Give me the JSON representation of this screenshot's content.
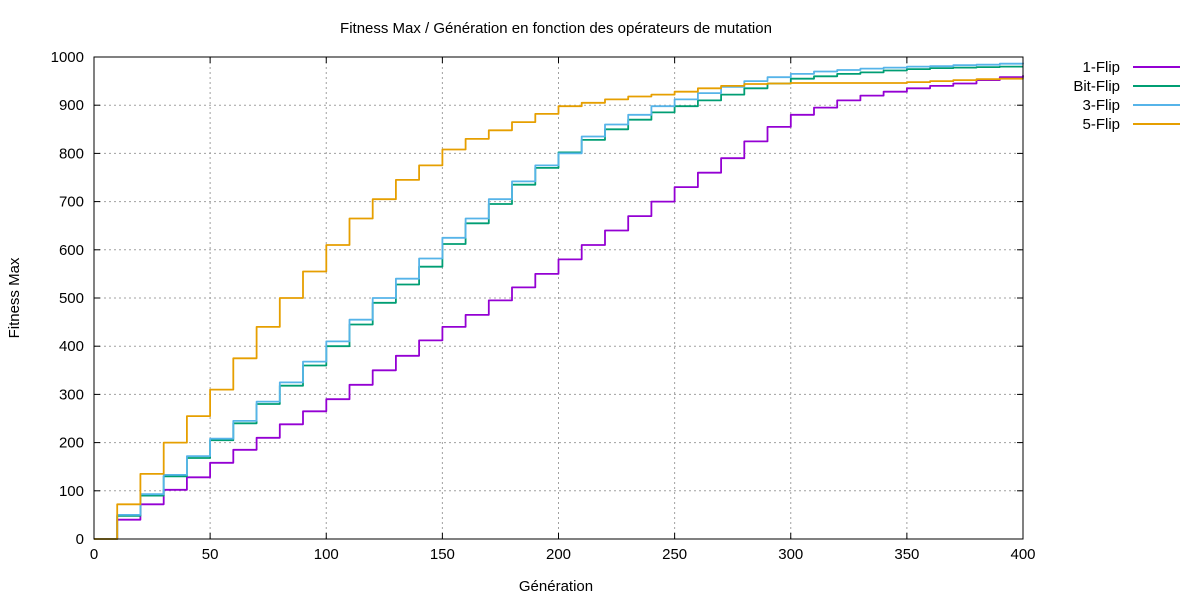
{
  "chart_data": {
    "type": "line",
    "title": "Fitness Max / Génération en fonction des opérateurs de mutation",
    "xlabel": "Génération",
    "ylabel": "Fitness Max",
    "xlim": [
      0,
      400
    ],
    "ylim": [
      0,
      1000
    ],
    "xticks": [
      0,
      50,
      100,
      150,
      200,
      250,
      300,
      350,
      400
    ],
    "yticks": [
      0,
      100,
      200,
      300,
      400,
      500,
      600,
      700,
      800,
      900,
      1000
    ],
    "grid": true,
    "legend_position": "outside-top-right",
    "series": [
      {
        "name": "1-Flip",
        "color": "#9400d3",
        "x": [
          0,
          10,
          20,
          30,
          40,
          50,
          60,
          70,
          80,
          90,
          100,
          110,
          120,
          130,
          140,
          150,
          160,
          170,
          180,
          190,
          200,
          210,
          220,
          230,
          240,
          250,
          260,
          270,
          280,
          290,
          300,
          310,
          320,
          330,
          340,
          350,
          360,
          370,
          380,
          390,
          400
        ],
        "y": [
          0,
          40,
          72,
          102,
          128,
          158,
          185,
          210,
          238,
          265,
          290,
          320,
          350,
          380,
          412,
          440,
          465,
          495,
          522,
          550,
          580,
          610,
          640,
          670,
          700,
          730,
          760,
          790,
          825,
          855,
          880,
          895,
          910,
          920,
          928,
          935,
          940,
          945,
          952,
          958,
          962
        ]
      },
      {
        "name": "Bit-Flip",
        "color": "#009e73",
        "x": [
          0,
          10,
          20,
          30,
          40,
          50,
          60,
          70,
          80,
          90,
          100,
          110,
          120,
          130,
          140,
          150,
          160,
          170,
          180,
          190,
          200,
          210,
          220,
          230,
          240,
          250,
          260,
          270,
          280,
          290,
          300,
          310,
          320,
          330,
          340,
          350,
          360,
          370,
          380,
          390,
          400
        ],
        "y": [
          0,
          48,
          90,
          130,
          168,
          205,
          240,
          280,
          318,
          360,
          400,
          445,
          490,
          528,
          565,
          612,
          655,
          695,
          735,
          770,
          802,
          828,
          850,
          870,
          885,
          898,
          910,
          922,
          935,
          945,
          955,
          960,
          965,
          968,
          972,
          975,
          977,
          978,
          979,
          980,
          980
        ]
      },
      {
        "name": "3-Flip",
        "color": "#56b4e9",
        "x": [
          0,
          10,
          20,
          30,
          40,
          50,
          60,
          70,
          80,
          90,
          100,
          110,
          120,
          130,
          140,
          150,
          160,
          170,
          180,
          190,
          200,
          210,
          220,
          230,
          240,
          250,
          260,
          270,
          280,
          290,
          300,
          310,
          320,
          330,
          340,
          350,
          360,
          370,
          380,
          390,
          400
        ],
        "y": [
          0,
          50,
          93,
          133,
          172,
          208,
          245,
          285,
          325,
          368,
          410,
          455,
          500,
          540,
          582,
          625,
          665,
          705,
          742,
          775,
          800,
          835,
          860,
          880,
          898,
          912,
          925,
          938,
          950,
          958,
          965,
          970,
          973,
          976,
          978,
          980,
          981,
          983,
          984,
          986,
          988
        ]
      },
      {
        "name": "5-Flip",
        "color": "#e69f00",
        "x": [
          0,
          10,
          20,
          30,
          40,
          50,
          60,
          70,
          80,
          90,
          100,
          110,
          120,
          130,
          140,
          150,
          160,
          170,
          180,
          190,
          200,
          210,
          220,
          230,
          240,
          250,
          260,
          270,
          280,
          290,
          300,
          310,
          320,
          330,
          340,
          350,
          360,
          370,
          380,
          390,
          400
        ],
        "y": [
          0,
          72,
          135,
          200,
          255,
          310,
          375,
          440,
          500,
          555,
          610,
          665,
          705,
          745,
          775,
          808,
          830,
          848,
          865,
          882,
          898,
          905,
          912,
          918,
          922,
          928,
          935,
          940,
          944,
          945,
          946,
          946,
          946,
          946,
          946,
          948,
          950,
          952,
          954,
          955,
          956
        ]
      }
    ]
  }
}
